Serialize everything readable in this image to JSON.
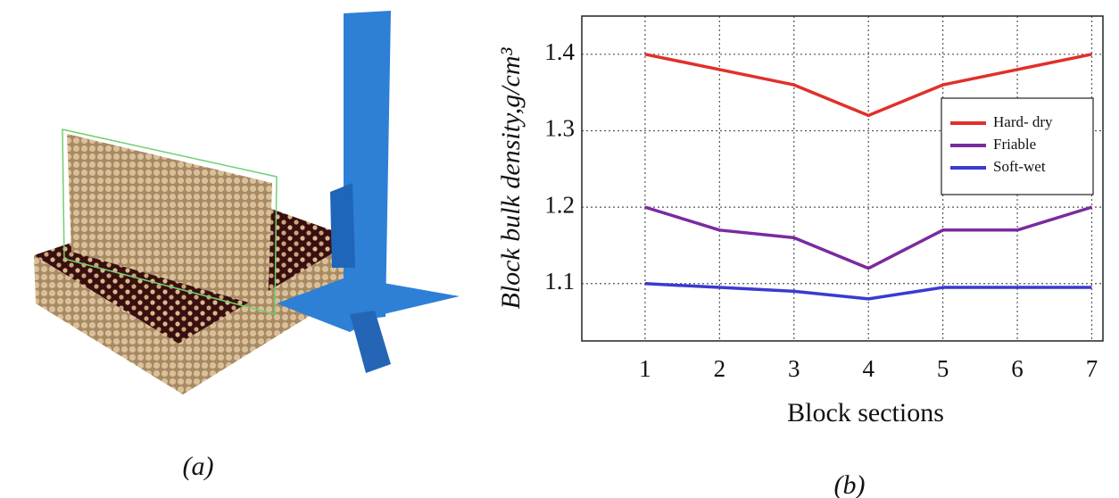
{
  "chart_data": {
    "type": "line",
    "xlabel": "Block sections",
    "ylabel": "Block bulk density,g/cm³",
    "x": [
      1,
      2,
      3,
      4,
      5,
      6,
      7
    ],
    "series": [
      {
        "name": "Hard- dry",
        "color": "#e0302a",
        "values": [
          1.4,
          1.38,
          1.36,
          1.32,
          1.36,
          1.38,
          1.4
        ]
      },
      {
        "name": "Friable",
        "color": "#7a2aa0",
        "values": [
          1.2,
          1.17,
          1.16,
          1.12,
          1.17,
          1.17,
          1.2
        ]
      },
      {
        "name": "Soft-wet",
        "color": "#3a3ad0",
        "values": [
          1.1,
          1.095,
          1.09,
          1.08,
          1.095,
          1.095,
          1.095
        ]
      }
    ],
    "xlim": [
      0.15,
      7.15
    ],
    "ylim": [
      1.025,
      1.45
    ],
    "xticks": [
      1,
      2,
      3,
      4,
      5,
      6,
      7
    ],
    "yticks": [
      1.1,
      1.2,
      1.3,
      1.4
    ],
    "grid": true,
    "legend": "upper right"
  },
  "captions": [
    "(a)",
    "(b)"
  ]
}
